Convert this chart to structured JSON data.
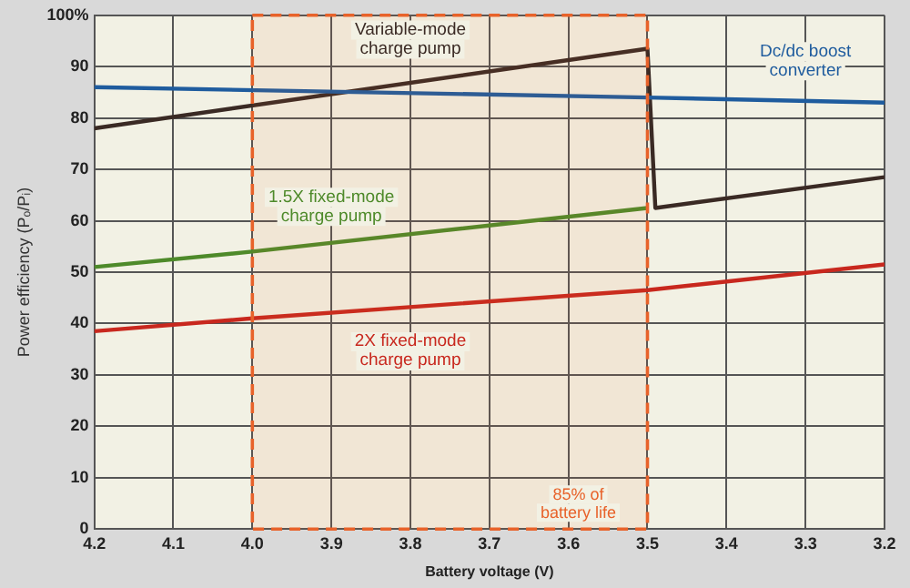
{
  "chart_data": {
    "type": "line",
    "xlabel": "Battery voltage (V)",
    "ylabel": "Power efficiency (Pₒ/Pᵢ)",
    "xlim": [
      4.2,
      3.2
    ],
    "xticks": [
      {
        "value": 4.2,
        "label": "4.2"
      },
      {
        "value": 4.1,
        "label": "4.1"
      },
      {
        "value": 4.0,
        "label": "4.0"
      },
      {
        "value": 3.9,
        "label": "3.9"
      },
      {
        "value": 3.8,
        "label": "3.8"
      },
      {
        "value": 3.7,
        "label": "3.7"
      },
      {
        "value": 3.6,
        "label": "3.6"
      },
      {
        "value": 3.5,
        "label": "3.5"
      },
      {
        "value": 3.4,
        "label": "3.4"
      },
      {
        "value": 3.3,
        "label": "3.3"
      },
      {
        "value": 3.2,
        "label": "3.2"
      }
    ],
    "ylim": [
      0,
      100
    ],
    "yticks": [
      0,
      10,
      20,
      30,
      40,
      50,
      60,
      70,
      80,
      90,
      {
        "value": 100,
        "label": "100%"
      }
    ],
    "grid": true,
    "legend": false,
    "marker": "none",
    "line_style": "solid",
    "series": [
      {
        "name": "Dc/dc boost\nconverter",
        "color": "#1f5c9e",
        "x": [
          4.2,
          3.5,
          3.2
        ],
        "values": [
          86,
          84,
          83
        ]
      },
      {
        "name": "Variable-mode\ncharge pump",
        "color": "#3a2a24",
        "x": [
          4.2,
          3.5,
          3.49,
          3.2
        ],
        "values": [
          78,
          93.5,
          62.5,
          68.5
        ]
      },
      {
        "name": "1.5X fixed-mode\ncharge pump",
        "color": "#4e8a2a",
        "x": [
          4.2,
          4.0,
          3.5
        ],
        "values": [
          51,
          54,
          62.5
        ]
      },
      {
        "name": "2X fixed-mode\ncharge pump",
        "color": "#c8281e",
        "x": [
          4.2,
          4.0,
          3.5,
          3.2
        ],
        "values": [
          38.5,
          41,
          46.5,
          51.5
        ]
      }
    ],
    "bands": [
      {
        "axis": "x",
        "from": 4.0,
        "to": 3.5,
        "label": "85% of\nbattery life",
        "color": "#e8622a"
      }
    ]
  }
}
